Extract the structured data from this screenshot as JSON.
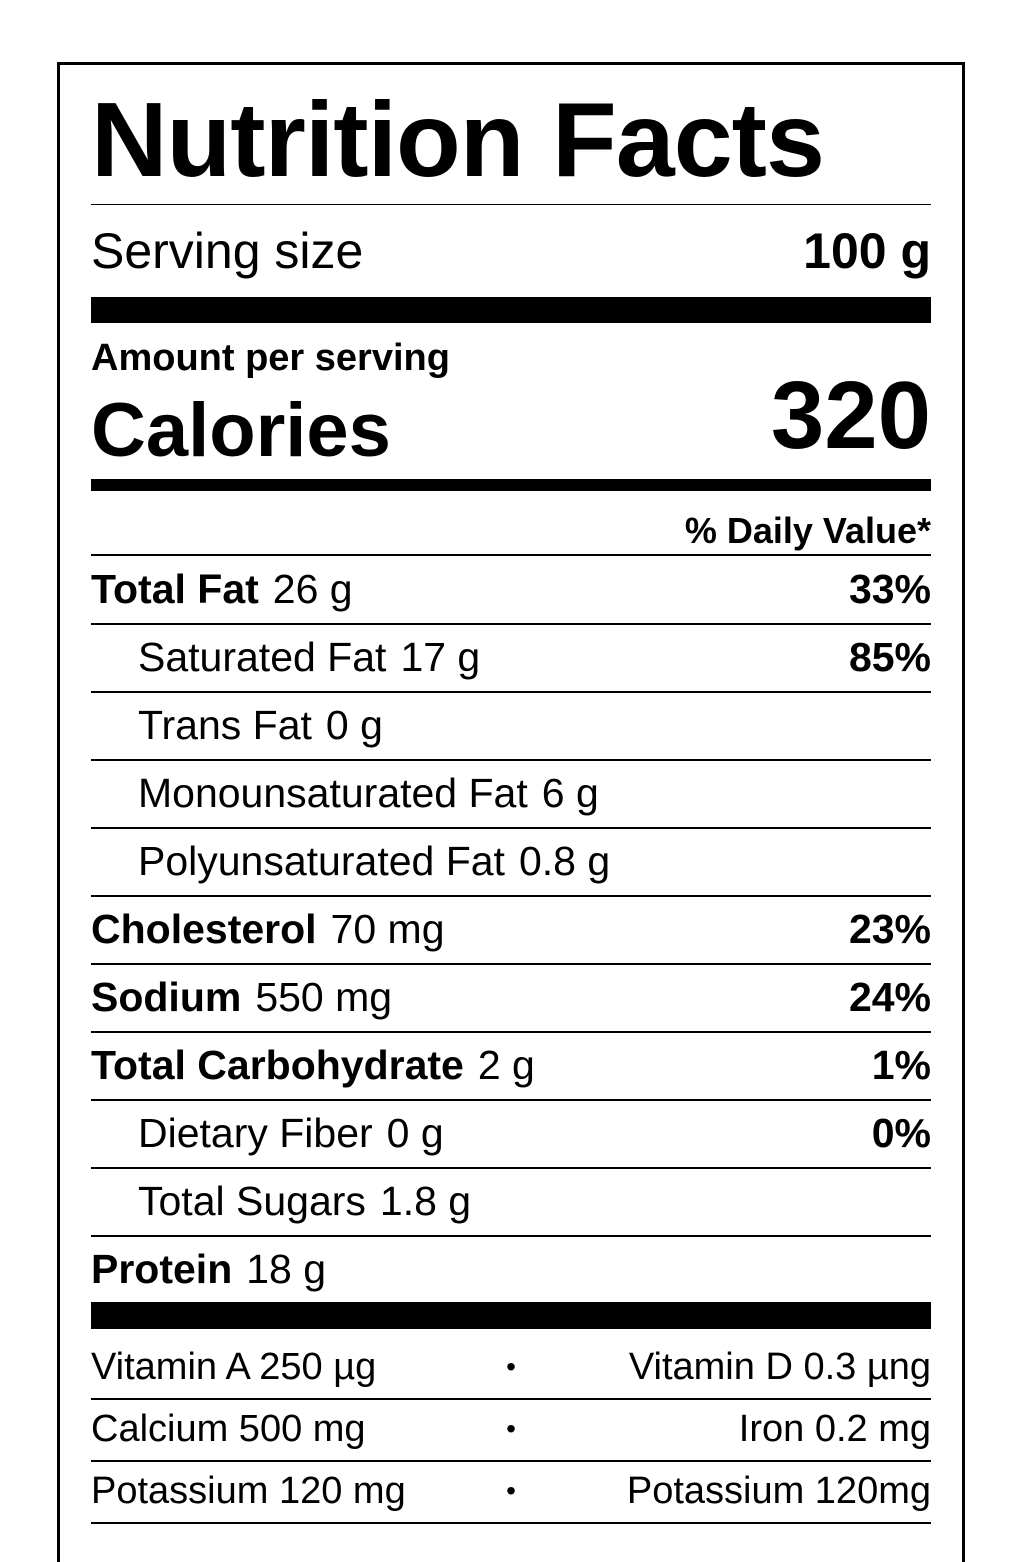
{
  "title": "Nutrition Facts",
  "serving": {
    "label": "Serving size",
    "value": "100 g"
  },
  "amount_per_serving": "Amount per serving",
  "calories": {
    "label": "Calories",
    "value": "320"
  },
  "daily_value_header": "% Daily Value*",
  "nutrients": [
    {
      "name": "Total Fat",
      "amount": "26 g",
      "dv": "33%",
      "bold": true
    },
    {
      "name": "Saturated Fat",
      "amount": "17 g",
      "dv": "85%",
      "bold": false
    },
    {
      "name": "Trans Fat",
      "amount": "0 g",
      "dv": "",
      "bold": false
    },
    {
      "name": "Monounsaturated Fat",
      "amount": "6 g",
      "dv": "",
      "bold": false
    },
    {
      "name": "Polyunsaturated Fat",
      "amount": "0.8 g",
      "dv": "",
      "bold": false
    },
    {
      "name": "Cholesterol",
      "amount": "70 mg",
      "dv": "23%",
      "bold": true
    },
    {
      "name": "Sodium",
      "amount": "550 mg",
      "dv": "24%",
      "bold": true
    },
    {
      "name": "Total Carbohydrate",
      "amount": "2 g",
      "dv": "1%",
      "bold": true
    },
    {
      "name": "Dietary Fiber",
      "amount": "0 g",
      "dv": "0%",
      "bold": false
    },
    {
      "name": "Total Sugars",
      "amount": "1.8 g",
      "dv": "",
      "bold": false
    },
    {
      "name": "Protein",
      "amount": "18 g",
      "dv": "",
      "bold": true
    }
  ],
  "vitamins": [
    {
      "left": "Vitamin A 250 µg",
      "sep": "•",
      "right": "Vitamin D 0.3 µng"
    },
    {
      "left": "Calcium 500 mg",
      "sep": "•",
      "right": "Iron 0.2 mg"
    },
    {
      "left": "Potassium 120 mg",
      "sep": "•",
      "right": "Potassium 120mg"
    }
  ]
}
